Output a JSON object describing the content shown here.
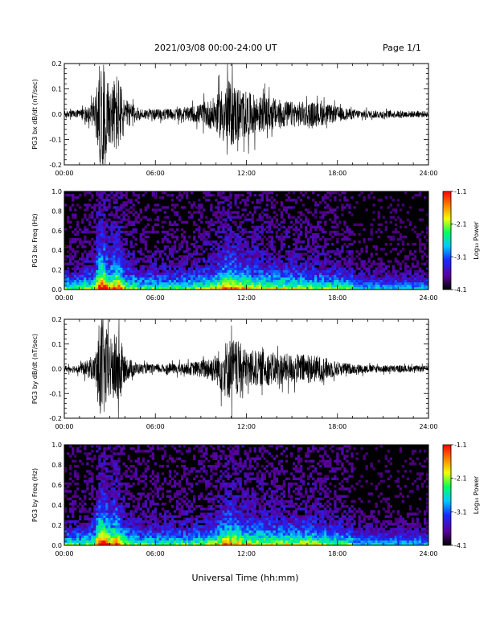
{
  "header": {
    "title": "2021/03/08  00:00-24:00 UT",
    "page": "Page 1/1"
  },
  "xaxis": {
    "label": "Universal Time (hh:mm)",
    "range": [
      0,
      24
    ],
    "ticks": [
      "00:00",
      "06:00",
      "12:00",
      "18:00",
      "24:00"
    ]
  },
  "colorbar": {
    "label": "Log₁₀ Power",
    "ticks": [
      "-1.1",
      "-2.1",
      "-3.1",
      "-4.1"
    ],
    "range": [
      -4.1,
      -1.1
    ],
    "colormap": [
      "#000000",
      "#5a009a",
      "#1a28ff",
      "#00c8ff",
      "#00ff60",
      "#f0ff00",
      "#ff8000",
      "#ff0000"
    ]
  },
  "chart_data": [
    {
      "type": "line",
      "ylabel": "PG3 bx dB/dt (nT/sec)",
      "ylim": [
        -0.2,
        0.2
      ],
      "yticks": [
        "0.2",
        "0.1",
        "0.0",
        "-0.1",
        "-0.2"
      ],
      "envelope_hours": [
        0,
        1,
        2,
        2.3,
        2.6,
        3,
        3.5,
        4,
        5,
        6,
        8,
        9,
        10,
        10.5,
        11,
        11.5,
        12,
        13,
        14,
        15,
        16,
        17,
        18,
        19,
        20,
        22,
        24
      ],
      "envelope_amplitude": [
        0.012,
        0.018,
        0.05,
        0.2,
        0.2,
        0.11,
        0.17,
        0.06,
        0.022,
        0.02,
        0.025,
        0.04,
        0.07,
        0.12,
        0.13,
        0.11,
        0.09,
        0.07,
        0.06,
        0.05,
        0.05,
        0.045,
        0.03,
        0.02,
        0.016,
        0.014,
        0.012
      ]
    },
    {
      "type": "heatmap",
      "ylabel": "PG3 bx Freq (Hz)",
      "ylim": [
        0.0,
        1.0
      ],
      "yticks": [
        "1.0",
        "0.8",
        "0.6",
        "0.4",
        "0.2",
        "0.0"
      ]
    },
    {
      "type": "line",
      "ylabel": "PG3 by dB/dt (nT/sec)",
      "ylim": [
        -0.2,
        0.2
      ],
      "yticks": [
        "0.2",
        "0.1",
        "0.0",
        "-0.1",
        "-0.2"
      ],
      "envelope_hours": [
        0,
        1,
        2,
        2.3,
        2.6,
        3,
        3.5,
        4,
        5,
        6,
        8,
        9,
        10,
        10.5,
        11,
        11.5,
        12,
        13,
        14,
        15,
        16,
        17,
        18,
        19,
        20,
        22,
        24
      ],
      "envelope_amplitude": [
        0.012,
        0.018,
        0.05,
        0.19,
        0.2,
        0.12,
        0.16,
        0.05,
        0.02,
        0.018,
        0.022,
        0.035,
        0.06,
        0.11,
        0.13,
        0.11,
        0.08,
        0.07,
        0.065,
        0.06,
        0.06,
        0.05,
        0.03,
        0.02,
        0.016,
        0.014,
        0.012
      ]
    },
    {
      "type": "heatmap",
      "ylabel": "PG3 by Freq (Hz)",
      "ylim": [
        0.0,
        1.0
      ],
      "yticks": [
        "1.0",
        "0.8",
        "0.6",
        "0.4",
        "0.2",
        "0.0"
      ]
    }
  ]
}
